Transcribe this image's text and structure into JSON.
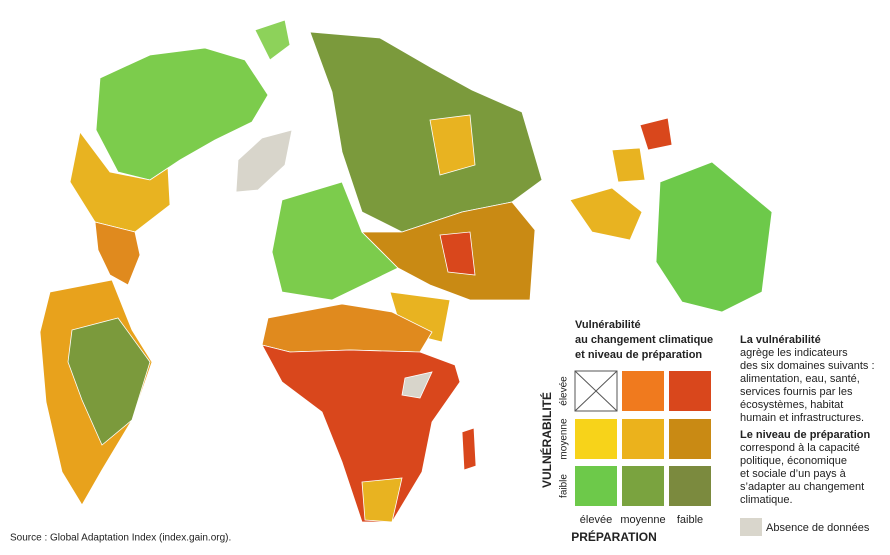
{
  "legend": {
    "title": [
      "Vulnérabilité",
      "au changement climatique",
      "et niveau de préparation"
    ],
    "y_axis_title": "VULNÉRABILITÉ",
    "y_labels": [
      "élevée",
      "moyenne",
      "faible"
    ],
    "x_axis_title": "PRÉPARATION",
    "x_labels": [
      "élevée",
      "moyenne",
      "faible"
    ],
    "no_data": "Absence de données"
  },
  "notes": [
    {
      "title": "La vulnérabilité",
      "lines": [
        "agrège les indicateurs",
        "des six domaines suivants :",
        "alimentation, eau, santé,",
        "services fournis par les",
        "écosystèmes, habitat",
        "humain et infrastructures."
      ]
    },
    {
      "title": "Le niveau de préparation",
      "lines": [
        "correspond à la capacité",
        "politique, économique",
        "et sociale d’un pays à",
        "s’adapter au changement",
        "climatique."
      ]
    }
  ],
  "source": "Source : Global Adaptation Index (index.gain.org)."
}
